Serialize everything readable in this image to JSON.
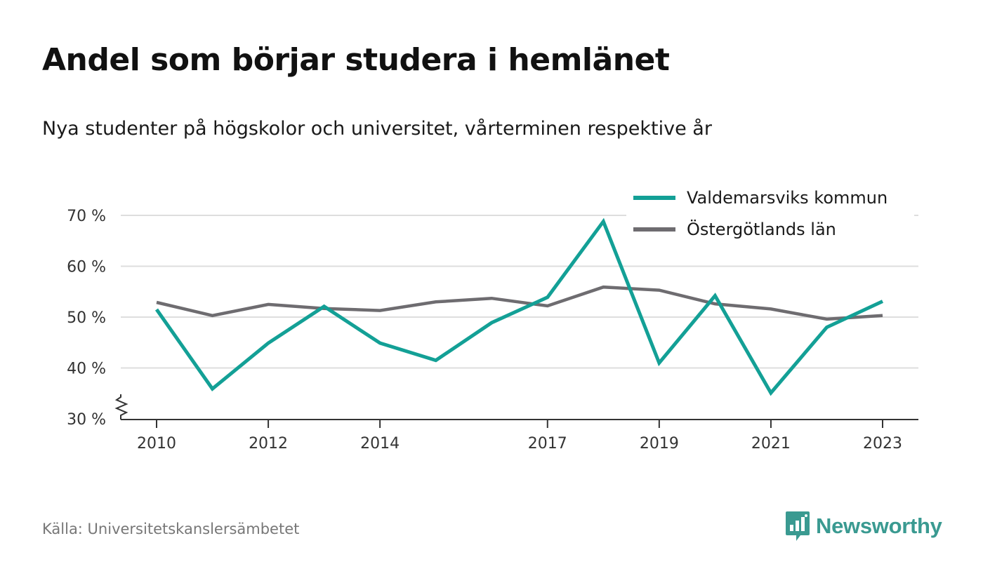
{
  "header": {
    "title": "Andel som börjar studera i hemlänet",
    "subtitle": "Nya studenter på högskolor och universitet, vårterminen respektive år"
  },
  "footer": {
    "source": "Källa: Universitetskanslersämbetet",
    "brand": "Newsworthy",
    "brand_icon": "bar-chart-speech-bubble-icon"
  },
  "colors": {
    "valdemarsvik": "#13a096",
    "ostergotland": "#6e6c70",
    "grid": "#dedede",
    "axis": "#333333",
    "brand": "#3a9a91"
  },
  "chart_data": {
    "type": "line",
    "x": [
      2010,
      2011,
      2012,
      2013,
      2014,
      2015,
      2016,
      2017,
      2018,
      2019,
      2020,
      2021,
      2022,
      2023
    ],
    "xticks": [
      2010,
      2012,
      2014,
      2017,
      2019,
      2021,
      2023
    ],
    "xtick_labels": [
      "2010",
      "2012",
      "2014",
      "2017",
      "2019",
      "2021",
      "2023"
    ],
    "yticks": [
      30,
      40,
      50,
      60,
      70
    ],
    "ytick_labels": [
      "30 %",
      "40 %",
      "50 %",
      "60 %",
      "70 %"
    ],
    "ylim": [
      30,
      70
    ],
    "xlim": [
      2010,
      2023
    ],
    "y_axis_break": true,
    "grid": "horizontal",
    "legend_position": "top-right",
    "series": [
      {
        "name": "Valdemarsviks kommun",
        "values": [
          51.5,
          35.9,
          44.9,
          52.1,
          44.9,
          41.5,
          48.9,
          53.9,
          68.8,
          41.0,
          54.2,
          35.1,
          48.0,
          53.1
        ]
      },
      {
        "name": "Östergötlands län",
        "values": [
          52.9,
          50.3,
          52.5,
          51.7,
          51.3,
          53.0,
          53.7,
          52.2,
          55.9,
          55.3,
          52.6,
          51.6,
          49.6,
          50.3
        ]
      }
    ]
  }
}
